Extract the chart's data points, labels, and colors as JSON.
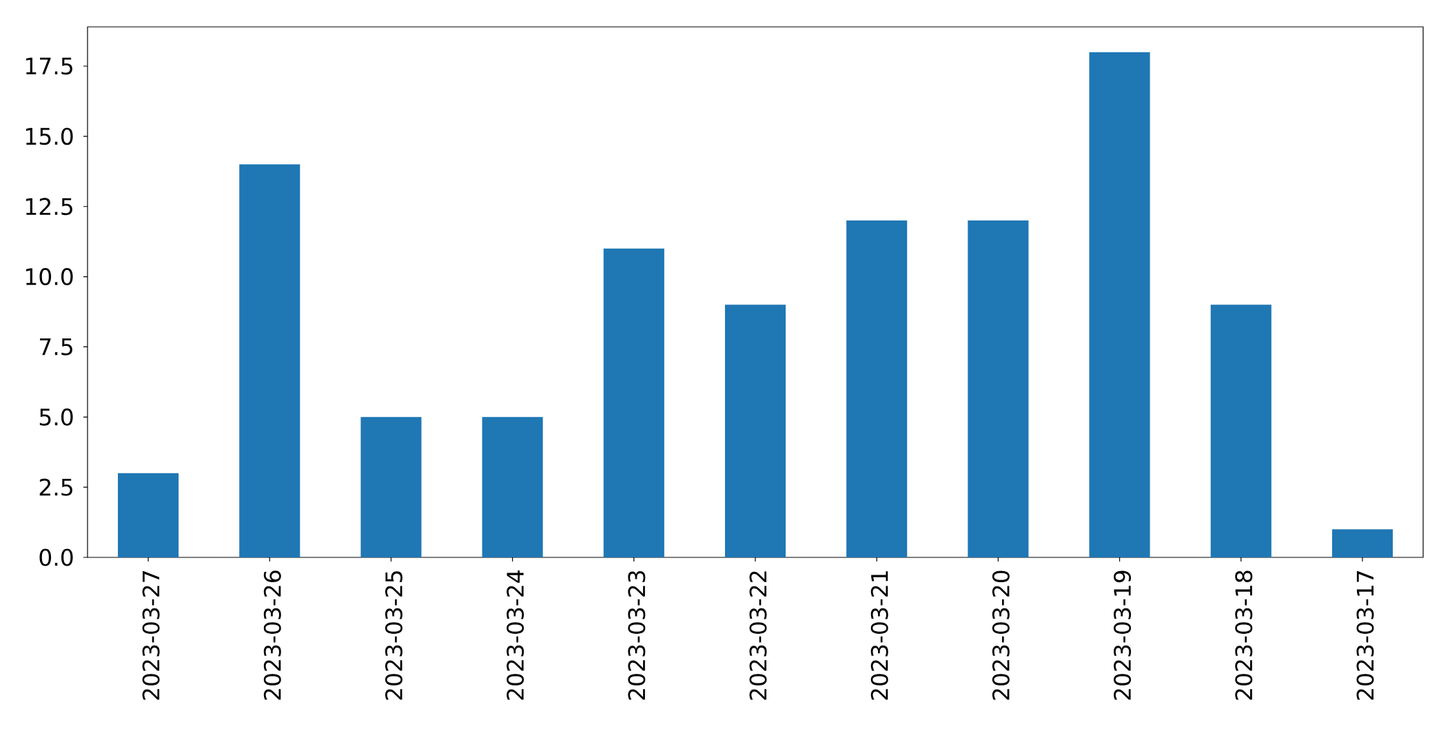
{
  "chart_data": {
    "type": "bar",
    "categories": [
      "2023-03-27",
      "2023-03-26",
      "2023-03-25",
      "2023-03-24",
      "2023-03-23",
      "2023-03-22",
      "2023-03-21",
      "2023-03-20",
      "2023-03-19",
      "2023-03-18",
      "2023-03-17"
    ],
    "values": [
      3,
      14,
      5,
      5,
      11,
      9,
      12,
      12,
      18,
      9,
      1
    ],
    "color": "#1f77b4",
    "ylim": [
      0,
      18.9
    ],
    "yticks": [
      {
        "value": 0,
        "label": "0.0"
      },
      2.5,
      {
        "value": 5,
        "label": "5.0"
      },
      7.5,
      {
        "value": 10,
        "label": "10.0"
      },
      12.5,
      {
        "value": 15,
        "label": "15.0"
      },
      17.5
    ]
  }
}
